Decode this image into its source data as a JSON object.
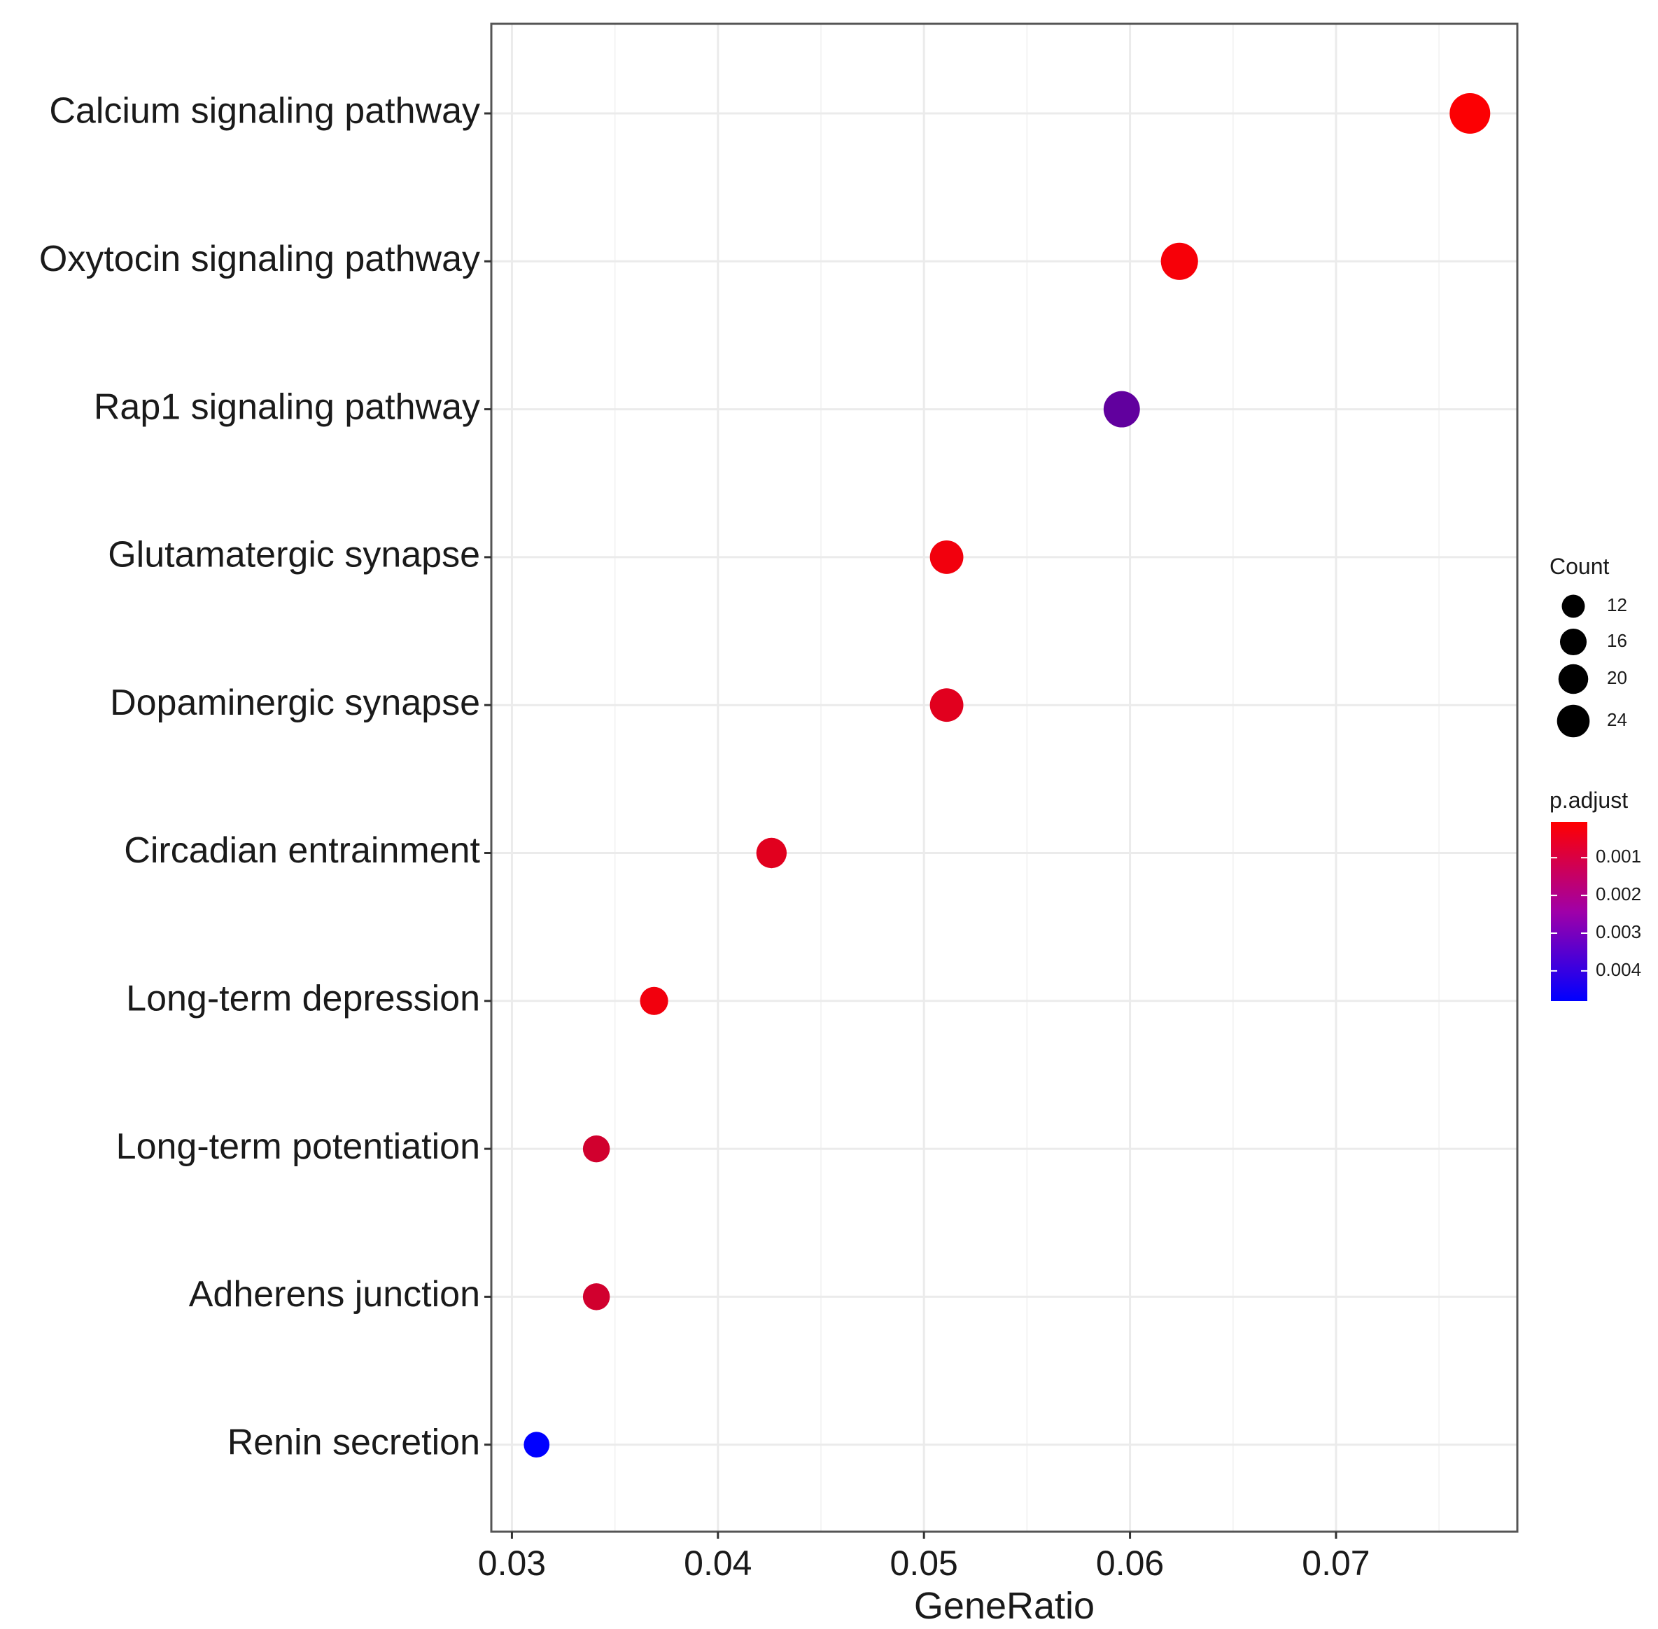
{
  "chart_data": {
    "type": "scatter",
    "title": "",
    "xlabel": "GeneRatio",
    "ylabel": "",
    "xlim": [
      0.029,
      0.0788
    ],
    "x_ticks": [
      "0.03",
      "0.04",
      "0.05",
      "0.06",
      "0.07"
    ],
    "x_tick_values": [
      0.03,
      0.04,
      0.05,
      0.06,
      0.07
    ],
    "grid": true,
    "legend_position": "right",
    "categories": [
      "Calcium signaling pathway",
      "Oxytocin signaling pathway",
      "Rap1 signaling pathway",
      "Glutamatergic synapse",
      "Dopaminergic synapse",
      "Circadian entrainment",
      "Long-term depression",
      "Long-term potentiation",
      "Adherens junction",
      "Renin secretion"
    ],
    "points": [
      {
        "term": "Calcium signaling pathway",
        "gene_ratio": 0.0765,
        "count": 25,
        "p_adjust": 0.0001
      },
      {
        "term": "Oxytocin signaling pathway",
        "gene_ratio": 0.0624,
        "count": 21,
        "p_adjust": 0.0002
      },
      {
        "term": "Rap1 signaling pathway",
        "gene_ratio": 0.0596,
        "count": 20,
        "p_adjust": 0.003
      },
      {
        "term": "Glutamatergic synapse",
        "gene_ratio": 0.0511,
        "count": 17,
        "p_adjust": 0.0003
      },
      {
        "term": "Dopaminergic synapse",
        "gene_ratio": 0.0511,
        "count": 17,
        "p_adjust": 0.0006
      },
      {
        "term": "Circadian entrainment",
        "gene_ratio": 0.0426,
        "count": 14,
        "p_adjust": 0.0006
      },
      {
        "term": "Long-term depression",
        "gene_ratio": 0.0369,
        "count": 12,
        "p_adjust": 0.0003
      },
      {
        "term": "Long-term potentiation",
        "gene_ratio": 0.0341,
        "count": 11,
        "p_adjust": 0.0009
      },
      {
        "term": "Adherens junction",
        "gene_ratio": 0.0341,
        "count": 11,
        "p_adjust": 0.0009
      },
      {
        "term": "Renin secretion",
        "gene_ratio": 0.0312,
        "count": 10,
        "p_adjust": 0.0048
      }
    ],
    "size_legend": {
      "title": "Count",
      "values": [
        12,
        16,
        20,
        24
      ],
      "labels": [
        "12",
        "16",
        "20",
        "24"
      ]
    },
    "color_legend": {
      "title": "p.adjust",
      "range": [
        5e-05,
        0.0048
      ],
      "tick_values": [
        0.001,
        0.002,
        0.003,
        0.004
      ],
      "tick_labels": [
        "0.001",
        "0.002",
        "0.003",
        "0.004"
      ],
      "low_color": "#ff0000",
      "high_color": "#0000ff"
    },
    "colors": {
      "grid_major": "#ebebeb",
      "grid_minor": "#f4f4f4",
      "panel_border": "#555555",
      "point_size_legend": "#000000"
    }
  }
}
